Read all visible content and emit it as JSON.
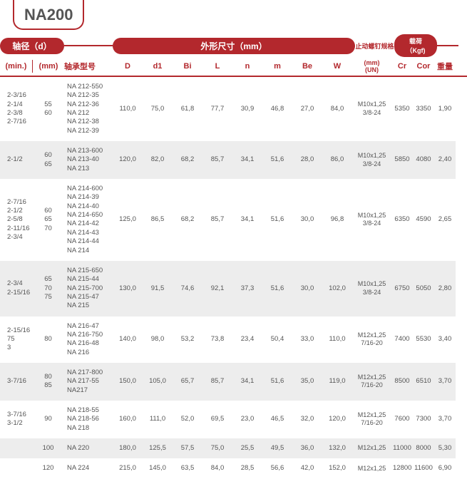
{
  "title": "NA200",
  "headers": {
    "shaft_d": "轴径（d）",
    "min": "(min.)",
    "mm": "(mm)",
    "model": "轴承型号",
    "dims": "外形尺寸（mm）",
    "D": "D",
    "d1": "d1",
    "Bi": "Bi",
    "L": "L",
    "n": "n",
    "m": "m",
    "Be": "Be",
    "W": "W",
    "setscrew": "止动螺钉规格",
    "setscrew_sub": "(mm)\n(UN)",
    "load": "载荷（Kgf)",
    "Cr": "Cr",
    "Cor": "Cor",
    "weight": "重量"
  },
  "rows": [
    {
      "alt": false,
      "min": [
        "2-3/16",
        "2-1/4",
        "",
        "2-3/8",
        "2-7/16"
      ],
      "mm": [
        "55",
        "",
        "60"
      ],
      "models": [
        "NA 212-550",
        "NA 212-35",
        "NA 212-36",
        "NA 212",
        "NA 212-38",
        "NA 212-39"
      ],
      "D": "110,0",
      "d1": "75,0",
      "Bi": "61,8",
      "L": "77,7",
      "n": "30,9",
      "m": "46,8",
      "Be": "27,0",
      "W": "84,0",
      "un": [
        "M10x1,25",
        "3/8-24"
      ],
      "Cr": "5350",
      "Cor": "3350",
      "wt": "1,90"
    },
    {
      "alt": true,
      "min": [
        "2-1/2"
      ],
      "mm": [
        "60",
        "",
        "65"
      ],
      "models": [
        "NA 213-600",
        "NA 213-40",
        "NA 213"
      ],
      "D": "120,0",
      "d1": "82,0",
      "Bi": "68,2",
      "L": "85,7",
      "n": "34,1",
      "m": "51,6",
      "Be": "28,0",
      "W": "86,0",
      "un": [
        "M10x1,25",
        "3/8-24"
      ],
      "Cr": "5850",
      "Cor": "4080",
      "wt": "2,40"
    },
    {
      "alt": false,
      "min": [
        "2-7/16",
        "2-1/2",
        "",
        "2-5/8",
        "2-11/16",
        "2-3/4"
      ],
      "mm": [
        "60",
        "",
        "65",
        "",
        "",
        "70"
      ],
      "models": [
        "NA 214-600",
        "NA 214-39",
        "NA 214-40",
        "NA 214-650",
        "NA 214-42",
        "NA 214-43",
        "NA 214-44",
        "NA 214"
      ],
      "D": "125,0",
      "d1": "86,5",
      "Bi": "68,2",
      "L": "85,7",
      "n": "34,1",
      "m": "51,6",
      "Be": "30,0",
      "W": "96,8",
      "un": [
        "M10x1,25",
        "3/8-24"
      ],
      "Cr": "6350",
      "Cor": "4590",
      "wt": "2,65"
    },
    {
      "alt": true,
      "min": [
        "2-3/4",
        "",
        "2-15/16"
      ],
      "mm": [
        "65",
        "70",
        "",
        "75"
      ],
      "models": [
        "NA 215-650",
        "NA 215-44",
        "NA 215-700",
        "NA 215-47",
        "NA 215"
      ],
      "D": "130,0",
      "d1": "91,5",
      "Bi": "74,6",
      "L": "92,1",
      "n": "37,3",
      "m": "51,6",
      "Be": "30,0",
      "W": "102,0",
      "un": [
        "M10x1,25",
        "3/8-24"
      ],
      "Cr": "6750",
      "Cor": "5050",
      "wt": "2,80"
    },
    {
      "alt": false,
      "min": [
        "2-15/16",
        "75",
        "3"
      ],
      "mm": [
        "",
        "",
        "80"
      ],
      "models": [
        "NA 216-47",
        "NA 216-750",
        "NA 216-48",
        "NA 216"
      ],
      "D": "140,0",
      "d1": "98,0",
      "Bi": "53,2",
      "L": "73,8",
      "n": "23,4",
      "m": "50,4",
      "Be": "33,0",
      "W": "110,0",
      "un": [
        "M12x1,25",
        "7/16-20"
      ],
      "Cr": "7400",
      "Cor": "5530",
      "wt": "3,40"
    },
    {
      "alt": true,
      "min": [
        "3-7/16"
      ],
      "mm": [
        "80",
        "",
        "85"
      ],
      "models": [
        "NA 217-800",
        "NA 217-55",
        "NA217"
      ],
      "D": "150,0",
      "d1": "105,0",
      "Bi": "65,7",
      "L": "85,7",
      "n": "34,1",
      "m": "51,6",
      "Be": "35,0",
      "W": "119,0",
      "un": [
        "M12x1,25",
        "7/16-20"
      ],
      "Cr": "8500",
      "Cor": "6510",
      "wt": "3,70"
    },
    {
      "alt": false,
      "min": [
        "3-7/16",
        "3-1/2"
      ],
      "mm": [
        "",
        "",
        "90"
      ],
      "models": [
        "NA 218-55",
        "NA 218-56",
        "NA 218"
      ],
      "D": "160,0",
      "d1": "111,0",
      "Bi": "52,0",
      "L": "69,5",
      "n": "23,0",
      "m": "46,5",
      "Be": "32,0",
      "W": "120,0",
      "un": [
        "M12x1,25",
        "7/16-20"
      ],
      "Cr": "7600",
      "Cor": "7300",
      "wt": "3,70"
    },
    {
      "alt": true,
      "min": [
        ""
      ],
      "mm": [
        "100"
      ],
      "models": [
        "NA 220"
      ],
      "D": "180,0",
      "d1": "125,5",
      "Bi": "57,5",
      "L": "75,0",
      "n": "25,5",
      "m": "49,5",
      "Be": "36,0",
      "W": "132,0",
      "un": [
        "M12x1,25"
      ],
      "Cr": "11000",
      "Cor": "8000",
      "wt": "5,30"
    },
    {
      "alt": false,
      "min": [
        ""
      ],
      "mm": [
        "120"
      ],
      "models": [
        "NA 224"
      ],
      "D": "215,0",
      "d1": "145,0",
      "Bi": "63,5",
      "L": "84,0",
      "n": "28,5",
      "m": "56,6",
      "Be": "42,0",
      "W": "152,0",
      "un": [
        "M12x1,25"
      ],
      "Cr": "12800",
      "Cor": "11600",
      "wt": "6,90"
    }
  ],
  "colors": {
    "accent": "#b3282d",
    "altbg": "#ededed",
    "text": "#555"
  }
}
